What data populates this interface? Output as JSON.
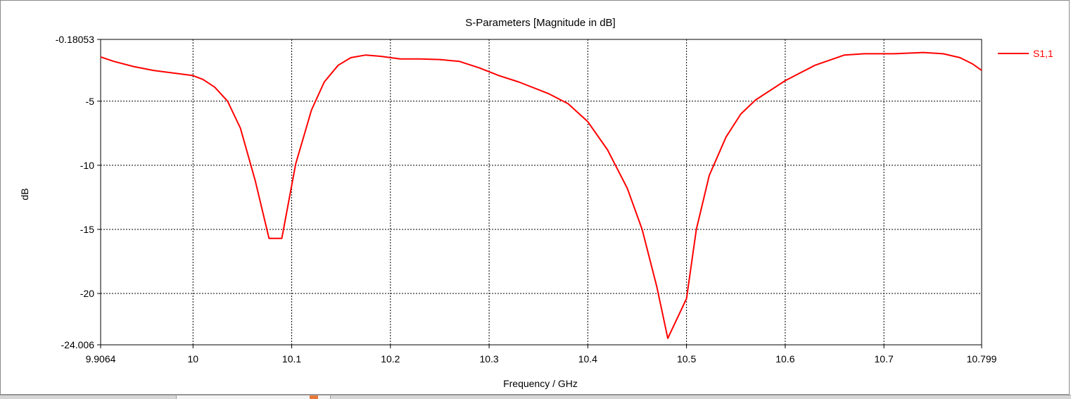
{
  "chart_data": {
    "type": "line",
    "title": "S-Parameters [Magnitude in dB]",
    "xlabel": "Frequency / GHz",
    "ylabel": "dB",
    "xlim": [
      9.9064,
      10.799
    ],
    "ylim": [
      -24.006,
      -0.18053
    ],
    "x_ticks": [
      9.9064,
      10.0,
      10.1,
      10.2,
      10.3,
      10.4,
      10.5,
      10.6,
      10.7,
      10.799
    ],
    "x_tick_labels": [
      "9.9064",
      "10",
      "10.1",
      "10.2",
      "10.3",
      "10.4",
      "10.5",
      "10.6",
      "10.7",
      "10.799"
    ],
    "y_ticks": [
      -0.18053,
      -5,
      -10,
      -15,
      -20,
      -24.006
    ],
    "y_tick_labels": [
      "-0.18053",
      "-5",
      "-10",
      "-15",
      "-20",
      "-24.006"
    ],
    "grid": true,
    "legend_position": "right",
    "series": [
      {
        "name": "S1,1",
        "color": "#ff0000",
        "x": [
          9.9064,
          9.92,
          9.94,
          9.96,
          9.98,
          10.0,
          10.01,
          10.022,
          10.035,
          10.048,
          10.063,
          10.077,
          10.09,
          10.104,
          10.12,
          10.133,
          10.147,
          10.16,
          10.175,
          10.19,
          10.21,
          10.23,
          10.25,
          10.27,
          10.29,
          10.31,
          10.33,
          10.36,
          10.38,
          10.4,
          10.42,
          10.44,
          10.455,
          10.47,
          10.481,
          10.5,
          10.51,
          10.523,
          10.54,
          10.555,
          10.57,
          10.6,
          10.63,
          10.66,
          10.68,
          10.71,
          10.74,
          10.76,
          10.777,
          10.79,
          10.799
        ],
        "values": [
          -1.55,
          -1.9,
          -2.3,
          -2.6,
          -2.8,
          -3.0,
          -3.3,
          -3.9,
          -5.0,
          -7.1,
          -11.2,
          -15.7,
          -15.7,
          -9.9,
          -5.7,
          -3.5,
          -2.2,
          -1.6,
          -1.4,
          -1.5,
          -1.7,
          -1.7,
          -1.75,
          -1.9,
          -2.4,
          -3.0,
          -3.5,
          -4.4,
          -5.2,
          -6.6,
          -8.8,
          -11.8,
          -15.0,
          -19.5,
          -23.5,
          -20.4,
          -15.0,
          -10.8,
          -7.8,
          -6.0,
          -4.9,
          -3.4,
          -2.2,
          -1.4,
          -1.3,
          -1.3,
          -1.2,
          -1.3,
          -1.6,
          -2.1,
          -2.6
        ]
      }
    ]
  }
}
